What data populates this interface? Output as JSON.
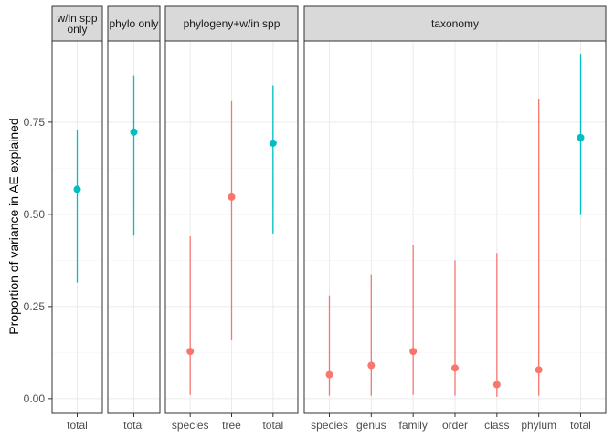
{
  "chart_data": {
    "type": "scatter",
    "ylabel": "Proportion of variance in AE explained",
    "xlabel": "",
    "ylim": [
      -0.04,
      0.97
    ],
    "yticks": [
      0.0,
      0.25,
      0.5,
      0.75
    ],
    "ytick_labels": [
      "0.00",
      "0.25",
      "0.50",
      "0.75"
    ],
    "grid": true,
    "colors": {
      "red": "#F8766D",
      "teal": "#00BFC4"
    },
    "panels": [
      {
        "name": "w/in spp only",
        "label_lines": [
          "w/in spp",
          "only"
        ],
        "points": [
          {
            "x": "total",
            "y": 0.568,
            "lower": 0.315,
            "upper": 0.728,
            "color": "teal"
          }
        ]
      },
      {
        "name": "phylo only",
        "label_lines": [
          "phylo only"
        ],
        "points": [
          {
            "x": "total",
            "y": 0.723,
            "lower": 0.442,
            "upper": 0.877,
            "color": "teal"
          }
        ]
      },
      {
        "name": "phylogeny+w/in spp",
        "label_lines": [
          "phylogeny+w/in spp"
        ],
        "points": [
          {
            "x": "species",
            "y": 0.128,
            "lower": 0.01,
            "upper": 0.44,
            "color": "red"
          },
          {
            "x": "tree",
            "y": 0.547,
            "lower": 0.158,
            "upper": 0.807,
            "color": "red"
          },
          {
            "x": "total",
            "y": 0.693,
            "lower": 0.448,
            "upper": 0.85,
            "color": "teal"
          }
        ]
      },
      {
        "name": "taxonomy",
        "label_lines": [
          "taxonomy"
        ],
        "points": [
          {
            "x": "species",
            "y": 0.065,
            "lower": 0.008,
            "upper": 0.28,
            "color": "red"
          },
          {
            "x": "genus",
            "y": 0.09,
            "lower": 0.008,
            "upper": 0.337,
            "color": "red"
          },
          {
            "x": "family",
            "y": 0.128,
            "lower": 0.01,
            "upper": 0.418,
            "color": "red"
          },
          {
            "x": "order",
            "y": 0.083,
            "lower": 0.008,
            "upper": 0.375,
            "color": "red"
          },
          {
            "x": "class",
            "y": 0.038,
            "lower": 0.005,
            "upper": 0.395,
            "color": "red"
          },
          {
            "x": "phylum",
            "y": 0.078,
            "lower": 0.008,
            "upper": 0.813,
            "color": "red"
          },
          {
            "x": "total",
            "y": 0.708,
            "lower": 0.498,
            "upper": 0.935,
            "color": "teal"
          }
        ]
      }
    ]
  }
}
